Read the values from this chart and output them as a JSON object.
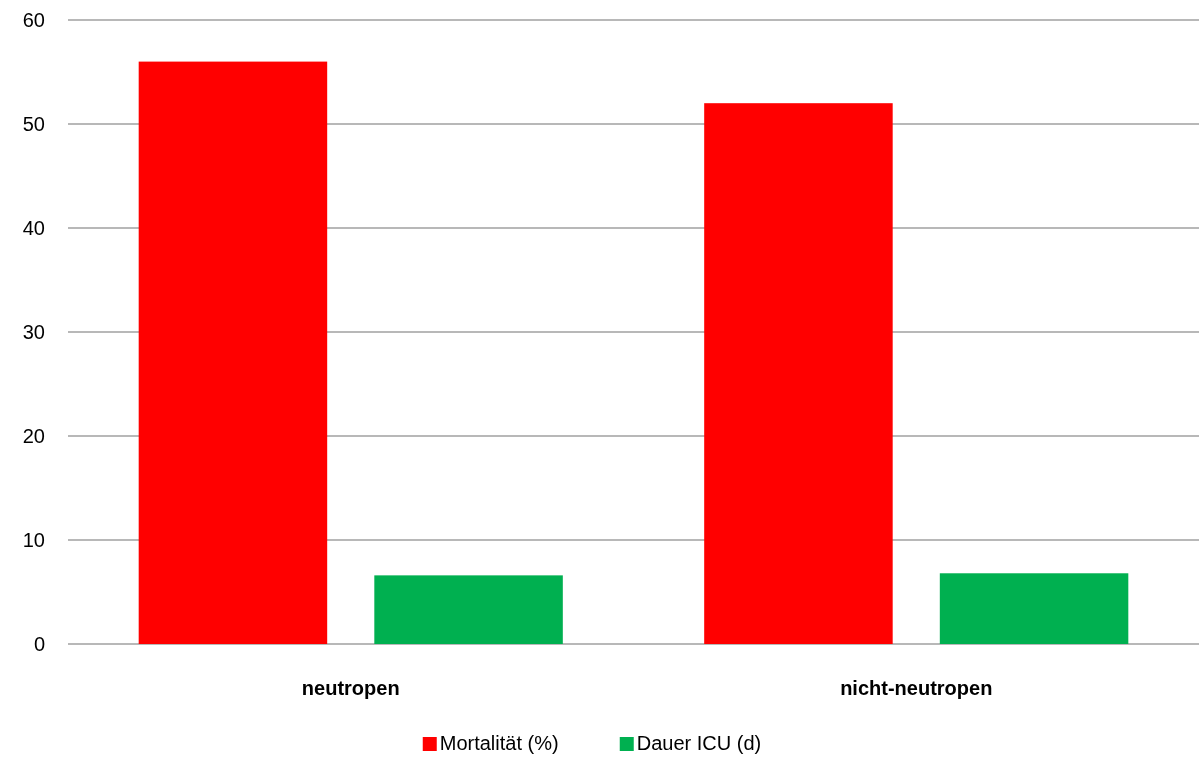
{
  "chart_data": {
    "type": "bar",
    "categories": [
      "neutropen",
      "nicht-neutropen"
    ],
    "series": [
      {
        "name": "Mortalität (%)",
        "color": "#ff0000",
        "values": [
          56,
          52
        ]
      },
      {
        "name": "Dauer ICU (d)",
        "color": "#00b050",
        "values": [
          6.6,
          6.8
        ]
      }
    ],
    "ylim": [
      0,
      60
    ],
    "yticks": [
      0,
      10,
      20,
      30,
      40,
      50,
      60
    ],
    "grid": "y",
    "legend": "bottom"
  }
}
